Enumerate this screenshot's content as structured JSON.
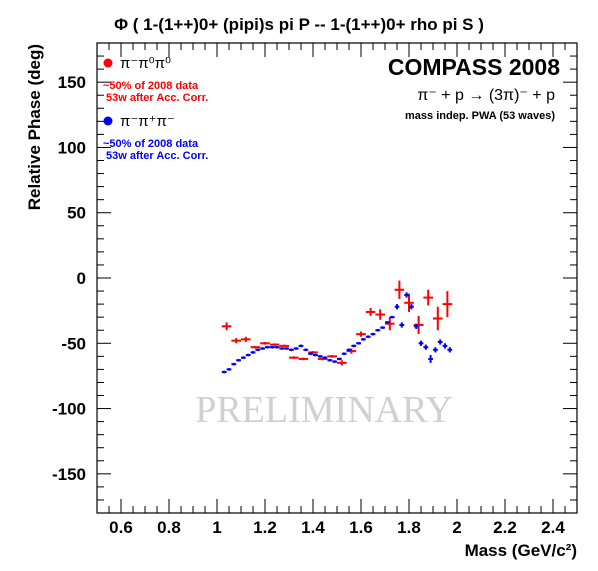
{
  "chart_data": {
    "type": "scatter",
    "title": "Φ ( 1-(1++)0+ (pipi)s pi P -- 1-(1++)0+ rho pi S )",
    "xlabel": "Mass (GeV/c²)",
    "ylabel": "Relative Phase (deg)",
    "xlim": [
      0.5,
      2.5
    ],
    "ylim": [
      -180,
      180
    ],
    "x_ticks": [
      "0.6",
      "0.8",
      "1",
      "1.2",
      "1.4",
      "1.6",
      "1.8",
      "2",
      "2.2",
      "2.4"
    ],
    "y_ticks": [
      "150",
      "100",
      "50",
      "0",
      "-50",
      "-100",
      "-150"
    ],
    "experiment": "COMPASS 2008",
    "reaction": "π⁻ + p → (3π)⁻ + p",
    "analysis_note": "mass indep. PWA (53 waves)",
    "watermark": "PRELIMINARY",
    "grid": false,
    "legend_position": "top-left",
    "series": [
      {
        "name": "π⁻π⁰π⁰",
        "color": "#ff0000",
        "note_line1": "~50% of 2008 data",
        "note_line2": "53w after Acc. Corr.",
        "points": [
          {
            "x": 1.04,
            "y": -37,
            "yerr": 3,
            "xerr": 0.02
          },
          {
            "x": 1.08,
            "y": -48,
            "yerr": 2,
            "xerr": 0.02
          },
          {
            "x": 1.12,
            "y": -47,
            "yerr": 2,
            "xerr": 0.02
          },
          {
            "x": 1.16,
            "y": -53,
            "yerr": 1,
            "xerr": 0.02
          },
          {
            "x": 1.2,
            "y": -50,
            "yerr": 1,
            "xerr": 0.02
          },
          {
            "x": 1.24,
            "y": -51,
            "yerr": 1,
            "xerr": 0.02
          },
          {
            "x": 1.28,
            "y": -52,
            "yerr": 1,
            "xerr": 0.02
          },
          {
            "x": 1.32,
            "y": -61,
            "yerr": 1,
            "xerr": 0.02
          },
          {
            "x": 1.36,
            "y": -62,
            "yerr": 1,
            "xerr": 0.02
          },
          {
            "x": 1.4,
            "y": -57,
            "yerr": 1,
            "xerr": 0.02
          },
          {
            "x": 1.44,
            "y": -62,
            "yerr": 1,
            "xerr": 0.02
          },
          {
            "x": 1.48,
            "y": -60,
            "yerr": 1,
            "xerr": 0.02
          },
          {
            "x": 1.52,
            "y": -65,
            "yerr": 2,
            "xerr": 0.02
          },
          {
            "x": 1.56,
            "y": -56,
            "yerr": 2,
            "xerr": 0.02
          },
          {
            "x": 1.6,
            "y": -43,
            "yerr": 2,
            "xerr": 0.02
          },
          {
            "x": 1.64,
            "y": -26,
            "yerr": 3,
            "xerr": 0.02
          },
          {
            "x": 1.68,
            "y": -28,
            "yerr": 4,
            "xerr": 0.02
          },
          {
            "x": 1.72,
            "y": -35,
            "yerr": 5,
            "xerr": 0.02
          },
          {
            "x": 1.76,
            "y": -9,
            "yerr": 7,
            "xerr": 0.02
          },
          {
            "x": 1.8,
            "y": -19,
            "yerr": 7,
            "xerr": 0.02
          },
          {
            "x": 1.84,
            "y": -36,
            "yerr": 7,
            "xerr": 0.02
          },
          {
            "x": 1.88,
            "y": -15,
            "yerr": 6,
            "xerr": 0.02
          },
          {
            "x": 1.92,
            "y": -31,
            "yerr": 9,
            "xerr": 0.02
          },
          {
            "x": 1.96,
            "y": -20,
            "yerr": 10,
            "xerr": 0.02
          }
        ]
      },
      {
        "name": "π⁻π⁺π⁻",
        "color": "#0000ff",
        "note_line1": "~50% of 2008 data",
        "note_line2": "53w after Acc. Corr.",
        "points": [
          {
            "x": 1.03,
            "y": -72,
            "yerr": 1,
            "xerr": 0.01
          },
          {
            "x": 1.05,
            "y": -70,
            "yerr": 1,
            "xerr": 0.01
          },
          {
            "x": 1.07,
            "y": -66,
            "yerr": 1,
            "xerr": 0.01
          },
          {
            "x": 1.09,
            "y": -63,
            "yerr": 1,
            "xerr": 0.01
          },
          {
            "x": 1.11,
            "y": -61,
            "yerr": 1,
            "xerr": 0.01
          },
          {
            "x": 1.13,
            "y": -59,
            "yerr": 1,
            "xerr": 0.01
          },
          {
            "x": 1.15,
            "y": -57,
            "yerr": 1,
            "xerr": 0.01
          },
          {
            "x": 1.17,
            "y": -55,
            "yerr": 1,
            "xerr": 0.01
          },
          {
            "x": 1.19,
            "y": -54,
            "yerr": 1,
            "xerr": 0.01
          },
          {
            "x": 1.21,
            "y": -53,
            "yerr": 1,
            "xerr": 0.01
          },
          {
            "x": 1.23,
            "y": -53,
            "yerr": 1,
            "xerr": 0.01
          },
          {
            "x": 1.25,
            "y": -53,
            "yerr": 1,
            "xerr": 0.01
          },
          {
            "x": 1.27,
            "y": -54,
            "yerr": 1,
            "xerr": 0.01
          },
          {
            "x": 1.29,
            "y": -54,
            "yerr": 1,
            "xerr": 0.01
          },
          {
            "x": 1.31,
            "y": -55,
            "yerr": 1,
            "xerr": 0.01
          },
          {
            "x": 1.33,
            "y": -54,
            "yerr": 1,
            "xerr": 0.01
          },
          {
            "x": 1.35,
            "y": -52,
            "yerr": 1,
            "xerr": 0.01
          },
          {
            "x": 1.37,
            "y": -55,
            "yerr": 1,
            "xerr": 0.01
          },
          {
            "x": 1.39,
            "y": -58,
            "yerr": 1,
            "xerr": 0.01
          },
          {
            "x": 1.41,
            "y": -59,
            "yerr": 1,
            "xerr": 0.01
          },
          {
            "x": 1.43,
            "y": -60,
            "yerr": 1,
            "xerr": 0.01
          },
          {
            "x": 1.45,
            "y": -61,
            "yerr": 1,
            "xerr": 0.01
          },
          {
            "x": 1.47,
            "y": -63,
            "yerr": 1,
            "xerr": 0.01
          },
          {
            "x": 1.49,
            "y": -64,
            "yerr": 1,
            "xerr": 0.01
          },
          {
            "x": 1.51,
            "y": -62,
            "yerr": 1,
            "xerr": 0.01
          },
          {
            "x": 1.53,
            "y": -58,
            "yerr": 1,
            "xerr": 0.01
          },
          {
            "x": 1.55,
            "y": -55,
            "yerr": 1,
            "xerr": 0.01
          },
          {
            "x": 1.57,
            "y": -52,
            "yerr": 1,
            "xerr": 0.01
          },
          {
            "x": 1.59,
            "y": -50,
            "yerr": 1,
            "xerr": 0.01
          },
          {
            "x": 1.61,
            "y": -47,
            "yerr": 1,
            "xerr": 0.01
          },
          {
            "x": 1.63,
            "y": -45,
            "yerr": 1,
            "xerr": 0.01
          },
          {
            "x": 1.65,
            "y": -43,
            "yerr": 1,
            "xerr": 0.01
          },
          {
            "x": 1.67,
            "y": -40,
            "yerr": 1,
            "xerr": 0.01
          },
          {
            "x": 1.69,
            "y": -38,
            "yerr": 1,
            "xerr": 0.01
          },
          {
            "x": 1.71,
            "y": -34,
            "yerr": 1,
            "xerr": 0.01
          },
          {
            "x": 1.73,
            "y": -30,
            "yerr": 1,
            "xerr": 0.01
          },
          {
            "x": 1.75,
            "y": -22,
            "yerr": 2,
            "xerr": 0.01
          },
          {
            "x": 1.77,
            "y": -36,
            "yerr": 2,
            "xerr": 0.01
          },
          {
            "x": 1.79,
            "y": -13,
            "yerr": 2,
            "xerr": 0.01
          },
          {
            "x": 1.81,
            "y": -22,
            "yerr": 2,
            "xerr": 0.01
          },
          {
            "x": 1.83,
            "y": -37,
            "yerr": 2,
            "xerr": 0.01
          },
          {
            "x": 1.85,
            "y": -50,
            "yerr": 2,
            "xerr": 0.01
          },
          {
            "x": 1.87,
            "y": -53,
            "yerr": 2,
            "xerr": 0.01
          },
          {
            "x": 1.89,
            "y": -62,
            "yerr": 3,
            "xerr": 0.01
          },
          {
            "x": 1.91,
            "y": -55,
            "yerr": 2,
            "xerr": 0.01
          },
          {
            "x": 1.93,
            "y": -49,
            "yerr": 2,
            "xerr": 0.01
          },
          {
            "x": 1.95,
            "y": -52,
            "yerr": 2,
            "xerr": 0.01
          },
          {
            "x": 1.97,
            "y": -55,
            "yerr": 2,
            "xerr": 0.01
          }
        ]
      }
    ]
  }
}
